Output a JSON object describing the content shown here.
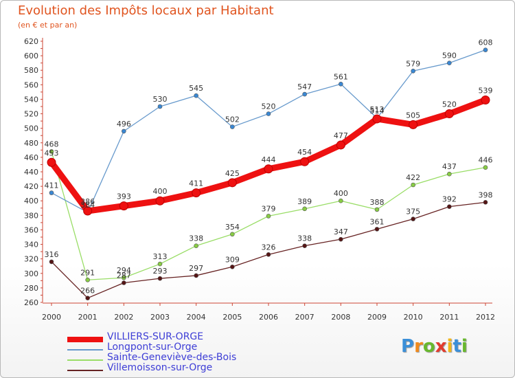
{
  "header": {
    "title": "Evolution des Impôts locaux par Habitant",
    "subtitle": "(en € et par an)"
  },
  "logo": {
    "letters": [
      "P",
      "r",
      "o",
      "x",
      "i",
      "t",
      "i"
    ],
    "colors": [
      "#3b8fd8",
      "#f08a1c",
      "#68b82e",
      "#e23b2e",
      "#f0b61c",
      "#3b8fd8",
      "#68b82e"
    ]
  },
  "chart_data": {
    "type": "line",
    "x": [
      "2000",
      "2001",
      "2002",
      "2003",
      "2004",
      "2005",
      "2006",
      "2007",
      "2008",
      "2009",
      "2010",
      "2011",
      "2012"
    ],
    "ylim": [
      260,
      620
    ],
    "yticks": [
      260,
      280,
      300,
      320,
      340,
      360,
      380,
      400,
      420,
      440,
      460,
      480,
      500,
      520,
      540,
      560,
      580,
      600,
      620
    ],
    "grid": false,
    "legend_position": "bottom-left",
    "series": [
      {
        "name": "VILLIERS-SUR-ORGE",
        "color": "#ee1111",
        "values": [
          453,
          386,
          393,
          400,
          411,
          425,
          444,
          454,
          477,
          513,
          505,
          520,
          539
        ]
      },
      {
        "name": "Longpont-sur-Orge",
        "color": "#6699cc",
        "values": [
          411,
          384,
          496,
          530,
          545,
          502,
          520,
          547,
          561,
          514,
          579,
          590,
          608
        ]
      },
      {
        "name": "Sainte-Geneviève-des-Bois",
        "color": "#99dd66",
        "values": [
          468,
          291,
          294,
          313,
          338,
          354,
          379,
          389,
          400,
          388,
          422,
          437,
          446
        ]
      },
      {
        "name": "Villemoisson-sur-Orge",
        "color": "#662222",
        "values": [
          316,
          266,
          287,
          293,
          297,
          309,
          326,
          338,
          347,
          361,
          375,
          392,
          398
        ]
      }
    ]
  }
}
